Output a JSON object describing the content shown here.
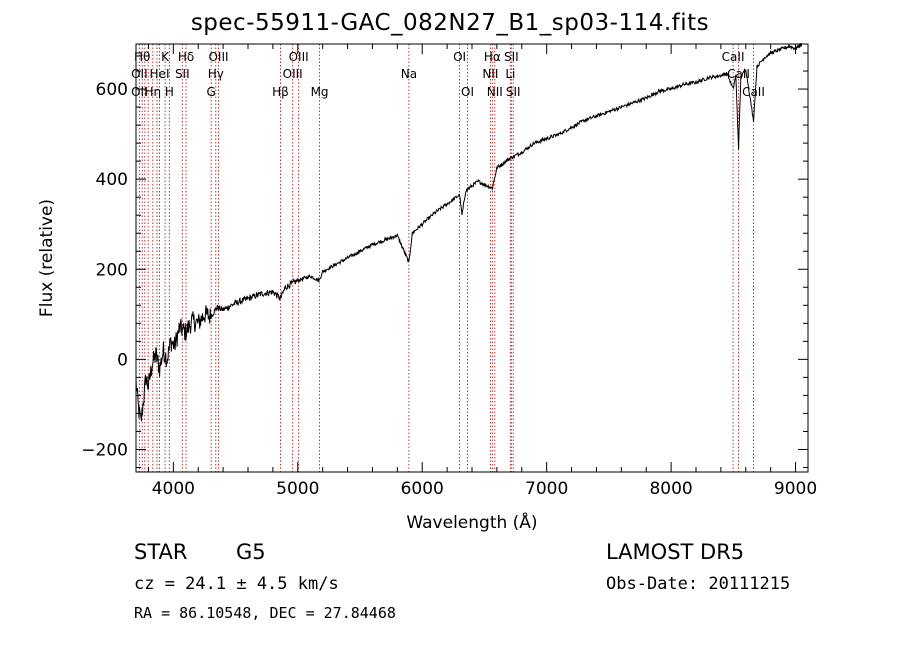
{
  "chart_data": {
    "type": "line",
    "title": "spec-55911-GAC_082N27_B1_sp03-114.fits",
    "xlabel": "Wavelength (Å)",
    "ylabel": "Flux (relative)",
    "xlim": [
      3700,
      9100
    ],
    "ylim": [
      -250,
      700
    ],
    "x_ticks": [
      4000,
      5000,
      6000,
      7000,
      8000,
      9000
    ],
    "y_ticks": [
      -200,
      0,
      200,
      400,
      600
    ],
    "grid": false,
    "series": [
      {
        "points": [
          [
            3700,
            -50
          ],
          [
            3720,
            -110
          ],
          [
            3740,
            -140
          ],
          [
            3760,
            -90
          ],
          [
            3780,
            -40
          ],
          [
            3800,
            -60
          ],
          [
            3830,
            -10
          ],
          [
            3860,
            10
          ],
          [
            3890,
            -20
          ],
          [
            3920,
            20
          ],
          [
            3950,
            0
          ],
          [
            3980,
            40
          ],
          [
            4010,
            30
          ],
          [
            4050,
            70
          ],
          [
            4100,
            60
          ],
          [
            4150,
            85
          ],
          [
            4200,
            80
          ],
          [
            4250,
            100
          ],
          [
            4300,
            95
          ],
          [
            4350,
            115
          ],
          [
            4400,
            110
          ],
          [
            4500,
            125
          ],
          [
            4600,
            135
          ],
          [
            4700,
            145
          ],
          [
            4800,
            150
          ],
          [
            4861,
            135
          ],
          [
            4900,
            160
          ],
          [
            5000,
            175
          ],
          [
            5100,
            185
          ],
          [
            5172,
            175
          ],
          [
            5200,
            195
          ],
          [
            5300,
            210
          ],
          [
            5400,
            225
          ],
          [
            5500,
            240
          ],
          [
            5600,
            255
          ],
          [
            5700,
            265
          ],
          [
            5800,
            275
          ],
          [
            5893,
            215
          ],
          [
            5920,
            280
          ],
          [
            6000,
            300
          ],
          [
            6100,
            325
          ],
          [
            6200,
            345
          ],
          [
            6300,
            365
          ],
          [
            6320,
            320
          ],
          [
            6350,
            375
          ],
          [
            6450,
            395
          ],
          [
            6563,
            380
          ],
          [
            6600,
            425
          ],
          [
            6700,
            445
          ],
          [
            6800,
            460
          ],
          [
            6900,
            480
          ],
          [
            7000,
            490
          ],
          [
            7100,
            500
          ],
          [
            7200,
            515
          ],
          [
            7300,
            530
          ],
          [
            7400,
            540
          ],
          [
            7500,
            550
          ],
          [
            7600,
            560
          ],
          [
            7700,
            570
          ],
          [
            7800,
            580
          ],
          [
            7900,
            595
          ],
          [
            8000,
            600
          ],
          [
            8100,
            610
          ],
          [
            8200,
            615
          ],
          [
            8300,
            625
          ],
          [
            8400,
            630
          ],
          [
            8450,
            635
          ],
          [
            8498,
            600
          ],
          [
            8520,
            630
          ],
          [
            8542,
            470
          ],
          [
            8560,
            625
          ],
          [
            8600,
            645
          ],
          [
            8662,
            530
          ],
          [
            8690,
            650
          ],
          [
            8750,
            670
          ],
          [
            8800,
            680
          ],
          [
            8850,
            685
          ],
          [
            8900,
            690
          ],
          [
            8950,
            695
          ],
          [
            9000,
            690
          ],
          [
            9050,
            700
          ]
        ]
      }
    ],
    "lines": [
      {
        "x": 3727,
        "label": "OII"
      },
      {
        "x": 3750,
        "label": "Hθ"
      },
      {
        "x": 3771,
        "label": ""
      },
      {
        "x": 3798,
        "label": ""
      },
      {
        "x": 3835,
        "label": ""
      },
      {
        "x": 3869,
        "label": "OIII"
      },
      {
        "x": 3889,
        "label": "HeI"
      },
      {
        "x": 3934,
        "label": "K"
      },
      {
        "x": 3968,
        "label": "H"
      },
      {
        "x": 4072,
        "label": "SII"
      },
      {
        "x": 4102,
        "label": "Hδ"
      },
      {
        "x": 4304,
        "label": "G"
      },
      {
        "x": 4341,
        "label": "Hγ"
      },
      {
        "x": 4363,
        "label": "OIII"
      },
      {
        "x": 4861,
        "label": "Hβ"
      },
      {
        "x": 4959,
        "label": "OIII"
      },
      {
        "x": 5007,
        "label": "OIII"
      },
      {
        "x": 5175,
        "label": "Mg"
      },
      {
        "x": 5893,
        "label": "Na"
      },
      {
        "x": 6300,
        "label": "OI"
      },
      {
        "x": 6364,
        "label": "OI"
      },
      {
        "x": 6548,
        "label": "NII"
      },
      {
        "x": 6563,
        "label": "Hα"
      },
      {
        "x": 6583,
        "label": "NII"
      },
      {
        "x": 6708,
        "label": "Li"
      },
      {
        "x": 6716,
        "label": "SII"
      },
      {
        "x": 6731,
        "label": "SII"
      },
      {
        "x": 8498,
        "label": "CaII"
      },
      {
        "x": 8542,
        "label": "CaII"
      },
      {
        "x": 8662,
        "label": "CaII"
      }
    ],
    "line_labels": [
      {
        "text": "Hθ",
        "x": 3750,
        "row": 0
      },
      {
        "text": "K",
        "x": 3934,
        "row": 0
      },
      {
        "text": "Hδ",
        "x": 4102,
        "row": 0
      },
      {
        "text": "OIII",
        "x": 4363,
        "row": 0
      },
      {
        "text": "OIII",
        "x": 5007,
        "row": 0
      },
      {
        "text": "OI",
        "x": 6300,
        "row": 0
      },
      {
        "text": "Hα",
        "x": 6563,
        "row": 0
      },
      {
        "text": "SII",
        "x": 6716,
        "row": 0
      },
      {
        "text": "CaII",
        "x": 8498,
        "row": 0
      },
      {
        "text": "OII",
        "x": 3727,
        "row": 1
      },
      {
        "text": "HeI",
        "x": 3889,
        "row": 1
      },
      {
        "text": "SII",
        "x": 4072,
        "row": 1
      },
      {
        "text": "Hγ",
        "x": 4341,
        "row": 1
      },
      {
        "text": "OIII",
        "x": 4959,
        "row": 1
      },
      {
        "text": "Na",
        "x": 5893,
        "row": 1
      },
      {
        "text": "NII",
        "x": 6548,
        "row": 1
      },
      {
        "text": "Li",
        "x": 6708,
        "row": 1
      },
      {
        "text": "CaII",
        "x": 8542,
        "row": 1
      },
      {
        "text": "OII",
        "x": 3727,
        "row": 2
      },
      {
        "text": "Hη",
        "x": 3835,
        "row": 2
      },
      {
        "text": "H",
        "x": 3968,
        "row": 2
      },
      {
        "text": "G",
        "x": 4304,
        "row": 2
      },
      {
        "text": "Hβ",
        "x": 4861,
        "row": 2
      },
      {
        "text": "Mg",
        "x": 5175,
        "row": 2
      },
      {
        "text": "OI",
        "x": 6364,
        "row": 2
      },
      {
        "text": "NII",
        "x": 6583,
        "row": 2
      },
      {
        "text": "SII",
        "x": 6731,
        "row": 2
      },
      {
        "text": "CaII",
        "x": 8662,
        "row": 2
      }
    ],
    "line_color": "#b22222"
  },
  "info": {
    "object_class": "STAR",
    "subclass": "G5",
    "survey": "LAMOST DR5",
    "redshift": "cz = 24.1 ± 4.5 km/s",
    "obs_date": "Obs-Date: 20111215",
    "coords": "RA =  86.10548, DEC =  27.84468"
  }
}
